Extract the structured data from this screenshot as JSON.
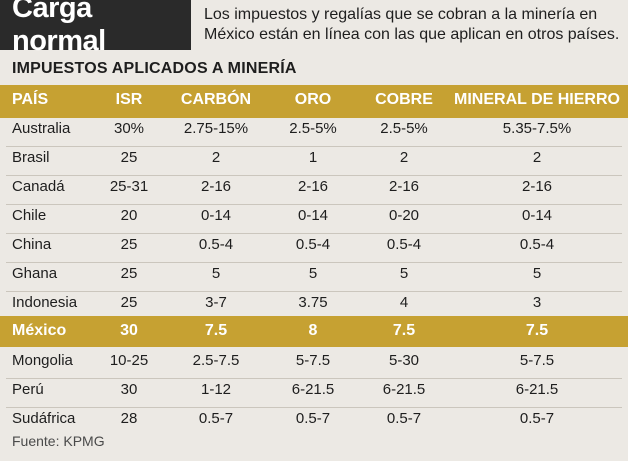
{
  "chart_data": {
    "type": "table",
    "title": "Carga normal",
    "subtitle": "Los impuestos y regalías que se cobran a la minería en México están en línea con las que aplican en otros países.",
    "table_title": "IMPUESTOS APLICADOS A MINERÍA",
    "columns": [
      "PAÍS",
      "ISR",
      "CARBÓN",
      "ORO",
      "COBRE",
      "MINERAL DE HIERRO"
    ],
    "rows": [
      [
        "Australia",
        "30%",
        "2.75-15%",
        "2.5-5%",
        "2.5-5%",
        "5.35-7.5%"
      ],
      [
        "Brasil",
        "25",
        "2",
        "1",
        "2",
        "2"
      ],
      [
        "Canadá",
        "25-31",
        "2-16",
        "2-16",
        "2-16",
        "2-16"
      ],
      [
        "Chile",
        "20",
        "0-14",
        "0-14",
        "0-20",
        "0-14"
      ],
      [
        "China",
        "25",
        "0.5-4",
        "0.5-4",
        "0.5-4",
        "0.5-4"
      ],
      [
        "Ghana",
        "25",
        "5",
        "5",
        "5",
        "5"
      ],
      [
        "Indonesia",
        "25",
        "3-7",
        "3.75",
        "4",
        "3"
      ],
      [
        "México",
        "30",
        "7.5",
        "8",
        "7.5",
        "7.5"
      ],
      [
        "Mongolia",
        "10-25",
        "2.5-7.5",
        "5-7.5",
        "5-30",
        "5-7.5"
      ],
      [
        "Perú",
        "30",
        "1-12",
        "6-21.5",
        "6-21.5",
        "6-21.5"
      ],
      [
        "Sudáfrica",
        "28",
        "0.5-7",
        "0.5-7",
        "0.5-7",
        "0.5-7"
      ]
    ],
    "highlight_row": "México",
    "source": "Fuente: KPMG"
  },
  "colors": {
    "gold": "#c6a132",
    "dark": "#2a2a2a",
    "background": "#ece9e4"
  }
}
